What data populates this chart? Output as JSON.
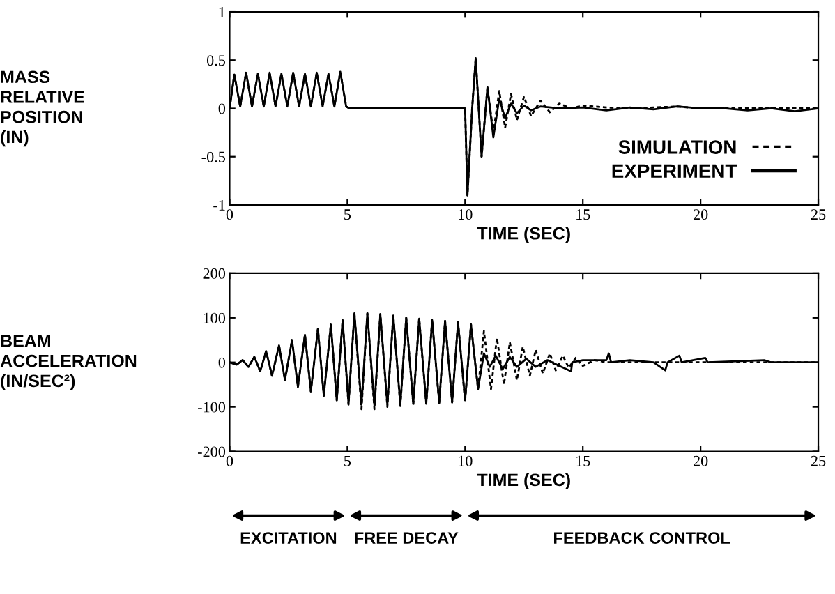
{
  "chart_data": [
    {
      "type": "line",
      "ylabel": "MASS\nRELATIVE\nPOSITION\n(IN)",
      "xlabel": "TIME (SEC)",
      "xlim": [
        0,
        25
      ],
      "xticks": [
        0,
        5,
        10,
        15,
        20,
        25
      ],
      "ylim": [
        -1,
        1
      ],
      "yticks": [
        -1,
        -0.5,
        0,
        0.5,
        1
      ],
      "grid": false,
      "legend": "bottom right",
      "series": [
        {
          "name": "SIMULATION",
          "color": "#000000",
          "line_style": "dotted",
          "x": [
            0,
            0.2,
            0.45,
            0.7,
            0.95,
            1.2,
            1.45,
            1.7,
            1.95,
            2.2,
            2.45,
            2.7,
            2.95,
            3.2,
            3.45,
            3.7,
            3.95,
            4.2,
            4.45,
            4.7,
            4.95,
            5.1,
            10.0,
            10.1,
            10.3,
            10.45,
            10.7,
            10.95,
            11.2,
            11.45,
            11.7,
            11.95,
            12.2,
            12.5,
            12.8,
            13.2,
            13.6,
            14,
            14.5,
            15,
            16,
            17,
            18,
            19,
            20,
            21,
            22,
            23,
            24,
            25
          ],
          "values": [
            0,
            0.35,
            0.02,
            0.37,
            0.02,
            0.36,
            0.02,
            0.37,
            0.02,
            0.36,
            0.02,
            0.37,
            0.02,
            0.36,
            0.02,
            0.37,
            0.02,
            0.36,
            0.02,
            0.38,
            0.02,
            0,
            0,
            -0.9,
            0,
            0.52,
            -0.5,
            0.22,
            -0.25,
            0.18,
            -0.2,
            0.15,
            -0.12,
            0.12,
            -0.08,
            0.08,
            -0.04,
            0.05,
            0,
            0.03,
            0.01,
            0,
            0.01,
            0.02,
            0,
            0,
            0,
            0,
            0,
            0
          ]
        },
        {
          "name": "EXPERIMENT",
          "color": "#000000",
          "line_style": "solid",
          "x": [
            0,
            0.2,
            0.45,
            0.7,
            0.95,
            1.2,
            1.45,
            1.7,
            1.95,
            2.2,
            2.45,
            2.7,
            2.95,
            3.2,
            3.45,
            3.7,
            3.95,
            4.2,
            4.45,
            4.7,
            4.95,
            5.1,
            10.0,
            10.1,
            10.3,
            10.45,
            10.7,
            10.95,
            11.2,
            11.45,
            11.7,
            11.95,
            12.2,
            12.5,
            12.8,
            13.2,
            14,
            15,
            16,
            17,
            18,
            19,
            20,
            21,
            22,
            23,
            24,
            25
          ],
          "values": [
            0,
            0.35,
            0.02,
            0.37,
            0.02,
            0.36,
            0.02,
            0.37,
            0.02,
            0.36,
            0.02,
            0.37,
            0.02,
            0.36,
            0.02,
            0.37,
            0.02,
            0.36,
            0.02,
            0.38,
            0.02,
            0,
            0,
            -0.9,
            0,
            0.52,
            -0.5,
            0.22,
            -0.3,
            0.1,
            -0.1,
            0.05,
            -0.05,
            0.03,
            -0.02,
            0.02,
            0,
            0.01,
            -0.02,
            0.01,
            -0.01,
            0.02,
            0,
            0,
            -0.02,
            0,
            -0.03,
            0
          ]
        }
      ]
    },
    {
      "type": "line",
      "ylabel": "BEAM\nACCELERATION\n(IN/SEC²)",
      "xlabel": "TIME (SEC)",
      "xlim": [
        0,
        25
      ],
      "xticks": [
        0,
        5,
        10,
        15,
        20,
        25
      ],
      "ylim": [
        -200,
        200
      ],
      "yticks": [
        -200,
        -100,
        0,
        100,
        200
      ],
      "grid": false,
      "annotations": [
        "EXCITATION",
        "FREE DECAY",
        "FEEDBACK CONTROL"
      ],
      "series": [
        {
          "color": "#000000",
          "line_style": "dotted",
          "x": [
            0,
            0.3,
            0.55,
            0.8,
            1.05,
            1.3,
            1.55,
            1.8,
            2.1,
            2.35,
            2.65,
            2.9,
            3.2,
            3.45,
            3.75,
            4.0,
            4.3,
            4.55,
            4.8,
            5.05,
            5.3,
            5.6,
            5.85,
            6.15,
            6.4,
            6.7,
            6.95,
            7.25,
            7.5,
            7.8,
            8.05,
            8.35,
            8.6,
            8.9,
            9.15,
            9.45,
            9.7,
            10.0,
            10.25,
            10.55,
            10.8,
            11.1,
            11.35,
            11.65,
            11.9,
            12.2,
            12.45,
            12.75,
            13.0,
            13.3,
            13.6,
            13.85,
            14.15,
            14.4,
            14.7,
            15,
            15.5,
            16,
            25
          ],
          "values": [
            0,
            -5,
            5,
            -10,
            12,
            -20,
            25,
            -30,
            38,
            -40,
            50,
            -55,
            62,
            -65,
            75,
            -75,
            85,
            -85,
            95,
            -95,
            110,
            -105,
            110,
            -105,
            108,
            -100,
            105,
            -98,
            100,
            -95,
            98,
            -93,
            95,
            -92,
            93,
            -90,
            90,
            -88,
            85,
            -60,
            70,
            -60,
            55,
            -50,
            45,
            -40,
            35,
            -30,
            28,
            -25,
            20,
            -18,
            15,
            -12,
            10,
            -8,
            5,
            0,
            0
          ]
        },
        {
          "color": "#000000",
          "line_style": "solid",
          "x": [
            0,
            0.3,
            0.55,
            0.8,
            1.05,
            1.3,
            1.55,
            1.8,
            2.1,
            2.35,
            2.65,
            2.9,
            3.2,
            3.45,
            3.75,
            4.0,
            4.3,
            4.55,
            4.8,
            5.05,
            5.3,
            5.6,
            5.85,
            6.15,
            6.4,
            6.7,
            6.95,
            7.25,
            7.5,
            7.8,
            8.05,
            8.35,
            8.6,
            8.9,
            9.15,
            9.45,
            9.7,
            10.0,
            10.25,
            10.55,
            10.8,
            11.05,
            11.3,
            11.6,
            11.9,
            12.2,
            12.6,
            13,
            13.5,
            14,
            14.5,
            14.55,
            15,
            16,
            16.1,
            16.2,
            17,
            18,
            18.5,
            18.6,
            19.1,
            19.2,
            20.2,
            20.3,
            22.7,
            23,
            25
          ],
          "values": [
            0,
            -5,
            5,
            -10,
            12,
            -20,
            25,
            -30,
            38,
            -40,
            50,
            -55,
            62,
            -65,
            75,
            -75,
            85,
            -85,
            95,
            -92,
            110,
            -95,
            110,
            -97,
            108,
            -95,
            105,
            -95,
            100,
            -93,
            98,
            -92,
            95,
            -90,
            93,
            -90,
            90,
            -85,
            85,
            -60,
            20,
            -10,
            15,
            -15,
            12,
            -10,
            8,
            -10,
            5,
            -8,
            -20,
            0,
            5,
            5,
            20,
            0,
            5,
            0,
            -18,
            0,
            15,
            0,
            10,
            0,
            5,
            0,
            0
          ]
        }
      ]
    }
  ]
}
